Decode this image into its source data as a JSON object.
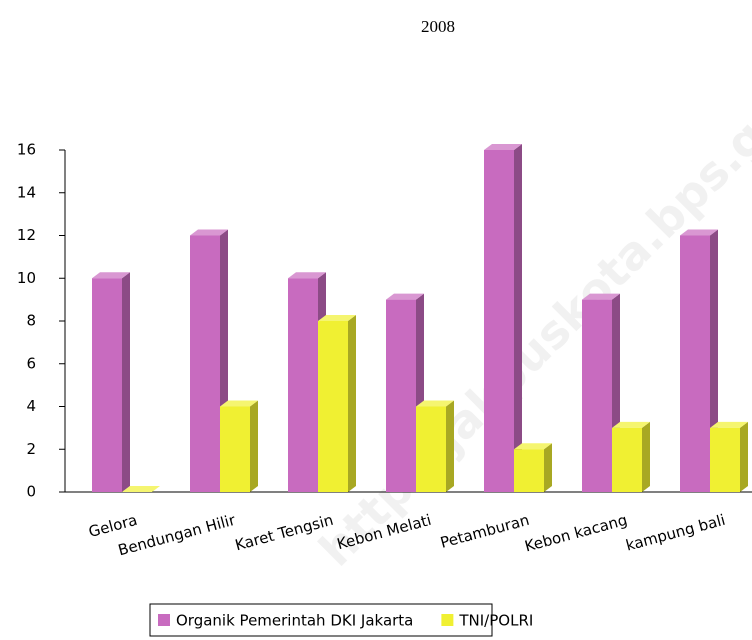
{
  "chart_data": {
    "type": "bar3d",
    "title": "2008",
    "categories": [
      "Gelora",
      "Bendungan Hilir",
      "Karet Tengsin",
      "Kebon Melati",
      "Petamburan",
      "Kebon kacang",
      "kampung bali"
    ],
    "series": [
      {
        "name": "Organik Pemerintah DKI Jakarta",
        "color": "#c86bbf",
        "values": [
          10,
          12,
          10,
          9,
          16,
          9,
          12
        ]
      },
      {
        "name": "TNI/POLRI",
        "color": "#f0f032",
        "values": [
          0,
          4,
          8,
          4,
          2,
          3,
          3
        ]
      }
    ],
    "ylim": [
      0,
      16
    ],
    "yticks": [
      0,
      2,
      4,
      6,
      8,
      10,
      12,
      14,
      16
    ],
    "legend": "bottom",
    "watermark": "http://jakpuskota.bps.go.id"
  }
}
